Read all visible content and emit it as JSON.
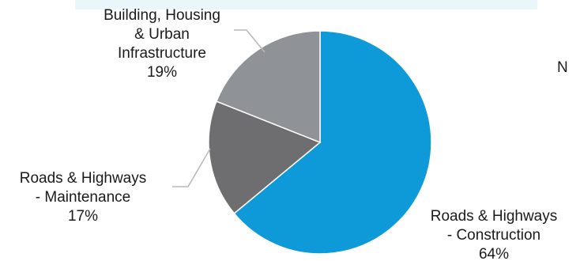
{
  "chart_data": {
    "type": "pie",
    "title": "",
    "slices": [
      {
        "label_lines": [
          "Roads & Highways",
          "- Construction"
        ],
        "percent_text": "64%",
        "value": 64,
        "color": "#0e9ad8"
      },
      {
        "label_lines": [
          "Roads & Highways",
          "- Maintenance"
        ],
        "percent_text": "17%",
        "value": 17,
        "color": "#6e6e70"
      },
      {
        "label_lines": [
          "Building, Housing",
          "& Urban",
          "Infrastructure"
        ],
        "percent_text": "19%",
        "value": 19,
        "color": "#8f9297"
      }
    ],
    "start_angle_deg": 0,
    "direction": "clockwise"
  },
  "colors": {
    "background": "#ffffff",
    "top_bar": "#e9f7fb",
    "leader_line": "#b9b9b9",
    "slice_border": "#ffffff"
  },
  "side_text": "N"
}
